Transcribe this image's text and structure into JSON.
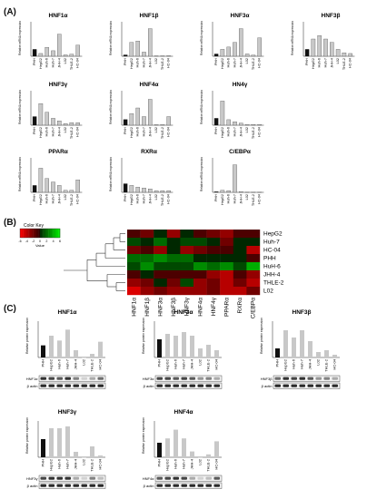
{
  "panels": {
    "a": "(A)",
    "b": "(B)",
    "c": "(C)"
  },
  "labels": {
    "cells_a": [
      "PHH",
      "HepG2",
      "Huh-6",
      "Huh-7",
      "JHH-4",
      "L02",
      "THLE-2",
      "HC-04"
    ],
    "cells_c": [
      "PHH",
      "HepG2",
      "Huh-6",
      "Huh-7",
      "JHH-4",
      "L02",
      "THLE-2",
      "HC-04"
    ],
    "ylabel_a": "Relative mRNA expression",
    "ylabel_c": "Relative protein expression",
    "actin": "β actin"
  },
  "heatmap": {
    "color_key_title": "Color Key",
    "value_label": "Value",
    "key_ticks": [
      "-6",
      "-4",
      "-2",
      "0",
      "2",
      "4",
      "6"
    ],
    "rows": [
      "HepG2",
      "Huh-7",
      "HC-04",
      "PHH",
      "HuH-6",
      "JHH-4",
      "THLE-2",
      "L02"
    ],
    "cols": [
      "HNF1α",
      "HNF1β",
      "HNF3α",
      "HNF3β",
      "HNF3γ",
      "HNF4α",
      "HNF4γ",
      "PPARα",
      "RXRα",
      "C/EBPα"
    ],
    "values": [
      [
        -1,
        -2,
        0,
        -3,
        0,
        -1,
        -2,
        -3,
        -1,
        -1
      ],
      [
        1,
        0,
        2,
        0,
        1,
        1,
        0,
        -2,
        0,
        0
      ],
      [
        -2,
        -1,
        -3,
        0,
        -3,
        -2,
        -1,
        -1,
        0,
        -4
      ],
      [
        2,
        2,
        3,
        2,
        2,
        0,
        0,
        0,
        0,
        -1
      ],
      [
        1,
        3,
        1,
        1,
        1,
        3,
        2,
        3,
        1,
        4
      ],
      [
        -1,
        0,
        -1,
        -1,
        -1,
        -1,
        -3,
        -4,
        -1,
        -3
      ],
      [
        -3,
        -2,
        0,
        -2,
        1,
        -3,
        -2,
        -4,
        -2,
        -4
      ],
      [
        -5,
        -3,
        -2,
        -3,
        -3,
        -3,
        -2,
        -4,
        -4,
        -2
      ]
    ]
  },
  "chart_data": [
    {
      "type": "bar",
      "title": "HNF1α",
      "categories": [
        "PHH",
        "HepG2",
        "Huh-6",
        "Huh-7",
        "JHH-4",
        "L02",
        "THLE-2",
        "HC-04"
      ],
      "values": [
        1,
        0.4,
        1.3,
        0.8,
        3.2,
        0.2,
        0.3,
        1.6
      ],
      "ylim": [
        0,
        5
      ]
    },
    {
      "type": "bar",
      "title": "HNF1β",
      "categories": [
        "PHH",
        "HepG2",
        "Huh-6",
        "Huh-7",
        "JHH-4",
        "L02",
        "THLE-2",
        "HC-04"
      ],
      "values": [
        1,
        10,
        11,
        3,
        20,
        0.3,
        0.3,
        0.4
      ],
      "ylim": [
        0,
        25
      ]
    },
    {
      "type": "bar",
      "title": "HNF3α",
      "categories": [
        "PHH",
        "HepG2",
        "Huh-6",
        "Huh-7",
        "JHH-4",
        "L02",
        "THLE-2",
        "HC-04"
      ],
      "values": [
        1,
        3,
        4,
        6,
        12,
        1,
        0.5,
        8
      ],
      "ylim": [
        0,
        15
      ]
    },
    {
      "type": "bar",
      "title": "HNF3β",
      "categories": [
        "PHH",
        "HepG2",
        "Huh-6",
        "Huh-7",
        "JHH-4",
        "L02",
        "THLE-2",
        "HC-04"
      ],
      "values": [
        1,
        2.5,
        3,
        2.5,
        2,
        1,
        0.5,
        0.4
      ],
      "ylim": [
        0,
        5
      ]
    },
    {
      "type": "bar",
      "title": "HNF3γ",
      "categories": [
        "PHH",
        "HepG2",
        "Huh-6",
        "Huh-7",
        "JHH-4",
        "L02",
        "THLE-2",
        "HC-04"
      ],
      "values": [
        1,
        2.5,
        1.5,
        0.8,
        0.5,
        0.2,
        0.3,
        0.3
      ],
      "ylim": [
        0,
        4
      ]
    },
    {
      "type": "bar",
      "title": "HNF4α",
      "categories": [
        "PHH",
        "HepG2",
        "Huh-6",
        "Huh-7",
        "JHH-4",
        "L02",
        "THLE-2",
        "HC-04"
      ],
      "values": [
        1,
        2,
        3,
        1.5,
        4.5,
        0.1,
        0.1,
        1.5
      ],
      "ylim": [
        0,
        6
      ]
    },
    {
      "type": "bar",
      "title": "HN4γ",
      "categories": [
        "PHH",
        "HepG2",
        "Huh-6",
        "Huh-7",
        "JHH-4",
        "L02",
        "THLE-2",
        "HC-04"
      ],
      "values": [
        1,
        3.5,
        0.8,
        0.5,
        0.3,
        0.1,
        0.1,
        0.1
      ],
      "ylim": [
        0,
        5
      ]
    },
    {
      "type": "bar",
      "title": "PPARα",
      "categories": [
        "PHH",
        "HepG2",
        "Huh-6",
        "Huh-7",
        "JHH-4",
        "L02",
        "THLE-2",
        "HC-04"
      ],
      "values": [
        1,
        3.5,
        2,
        1.5,
        1,
        0.3,
        0.3,
        1.8
      ],
      "ylim": [
        0,
        5
      ]
    },
    {
      "type": "bar",
      "title": "RXRα",
      "categories": [
        "PHH",
        "HepG2",
        "Huh-6",
        "Huh-7",
        "JHH-4",
        "L02",
        "THLE-2",
        "HC-04"
      ],
      "values": [
        1,
        0.8,
        0.6,
        0.5,
        0.4,
        0.2,
        0.2,
        0.2
      ],
      "ylim": [
        0,
        4
      ]
    },
    {
      "type": "bar",
      "title": "C/EBPα",
      "categories": [
        "PHH",
        "HepG2",
        "Huh-6",
        "Huh-7",
        "JHH-4",
        "L02",
        "THLE-2",
        "HC-04"
      ],
      "values": [
        1,
        3,
        2.5,
        40,
        1,
        0.3,
        0.3,
        0.3
      ],
      "ylim": [
        0,
        50
      ]
    },
    {
      "type": "bar",
      "title": "HNF1α",
      "categories": [
        "PHH",
        "HepG2",
        "Huh-6",
        "Huh-7",
        "JHH-4",
        "L02",
        "THLE-2",
        "HC-04"
      ],
      "values": [
        1,
        1.8,
        1.4,
        2.3,
        0.6,
        0,
        0.3,
        1.3
      ],
      "ylim": [
        0,
        3
      ]
    },
    {
      "type": "bar",
      "title": "HNF3α",
      "categories": [
        "PHH",
        "HepG2",
        "Huh-6",
        "Huh-7",
        "JHH-4",
        "L02",
        "THLE-2",
        "HC-04"
      ],
      "values": [
        1,
        1.3,
        1.2,
        1.4,
        1.2,
        0.5,
        0.7,
        0.4
      ],
      "ylim": [
        0,
        2
      ]
    },
    {
      "type": "bar",
      "title": "HNF3β",
      "categories": [
        "PHH",
        "HepG2",
        "Huh-6",
        "Huh-7",
        "JHH-4",
        "L02",
        "THLE-2",
        "HC-04"
      ],
      "values": [
        1,
        3,
        2.2,
        3,
        1.8,
        0.6,
        0.8,
        0.3
      ],
      "ylim": [
        0,
        4
      ]
    },
    {
      "type": "bar",
      "title": "HNF3γ",
      "categories": [
        "PHH",
        "HepG2",
        "Huh-6",
        "Huh-7",
        "JHH-4",
        "L02",
        "THLE-2",
        "HC-04"
      ],
      "values": [
        1,
        1.6,
        1.6,
        1.7,
        0.3,
        0,
        0.6,
        0.1
      ],
      "ylim": [
        0,
        2
      ]
    },
    {
      "type": "bar",
      "title": "HNF4α",
      "categories": [
        "PHH",
        "HepG2",
        "Huh-6",
        "Huh-7",
        "JHH-4",
        "L02",
        "THLE-2",
        "HC-04"
      ],
      "values": [
        1,
        1.3,
        1.9,
        1.3,
        0.4,
        0,
        0.2,
        1.1
      ],
      "ylim": [
        0,
        2.5
      ]
    }
  ],
  "blots": [
    {
      "protein": "HNF1α",
      "bands": [
        0.9,
        0.8,
        0.7,
        0.9,
        0.5,
        0.1,
        0.3,
        0.6
      ]
    },
    {
      "protein": "HNF3α",
      "bands": [
        0.8,
        0.8,
        0.7,
        0.8,
        0.7,
        0.4,
        0.5,
        0.3
      ]
    },
    {
      "protein": "HNF3β",
      "bands": [
        0.6,
        0.9,
        0.8,
        0.9,
        0.7,
        0.4,
        0.5,
        0.3
      ]
    },
    {
      "protein": "HNF3γ",
      "bands": [
        0.8,
        0.9,
        0.9,
        0.9,
        0.3,
        0.1,
        0.5,
        0.2
      ]
    },
    {
      "protein": "HNF4α",
      "bands": [
        0.7,
        0.8,
        0.9,
        0.8,
        0.3,
        0.1,
        0.2,
        0.7
      ]
    }
  ],
  "colors": {
    "phh_bar": "#111111",
    "cell_bar": "#c8c8c8",
    "green": "#00e000",
    "red": "#ff0000"
  }
}
